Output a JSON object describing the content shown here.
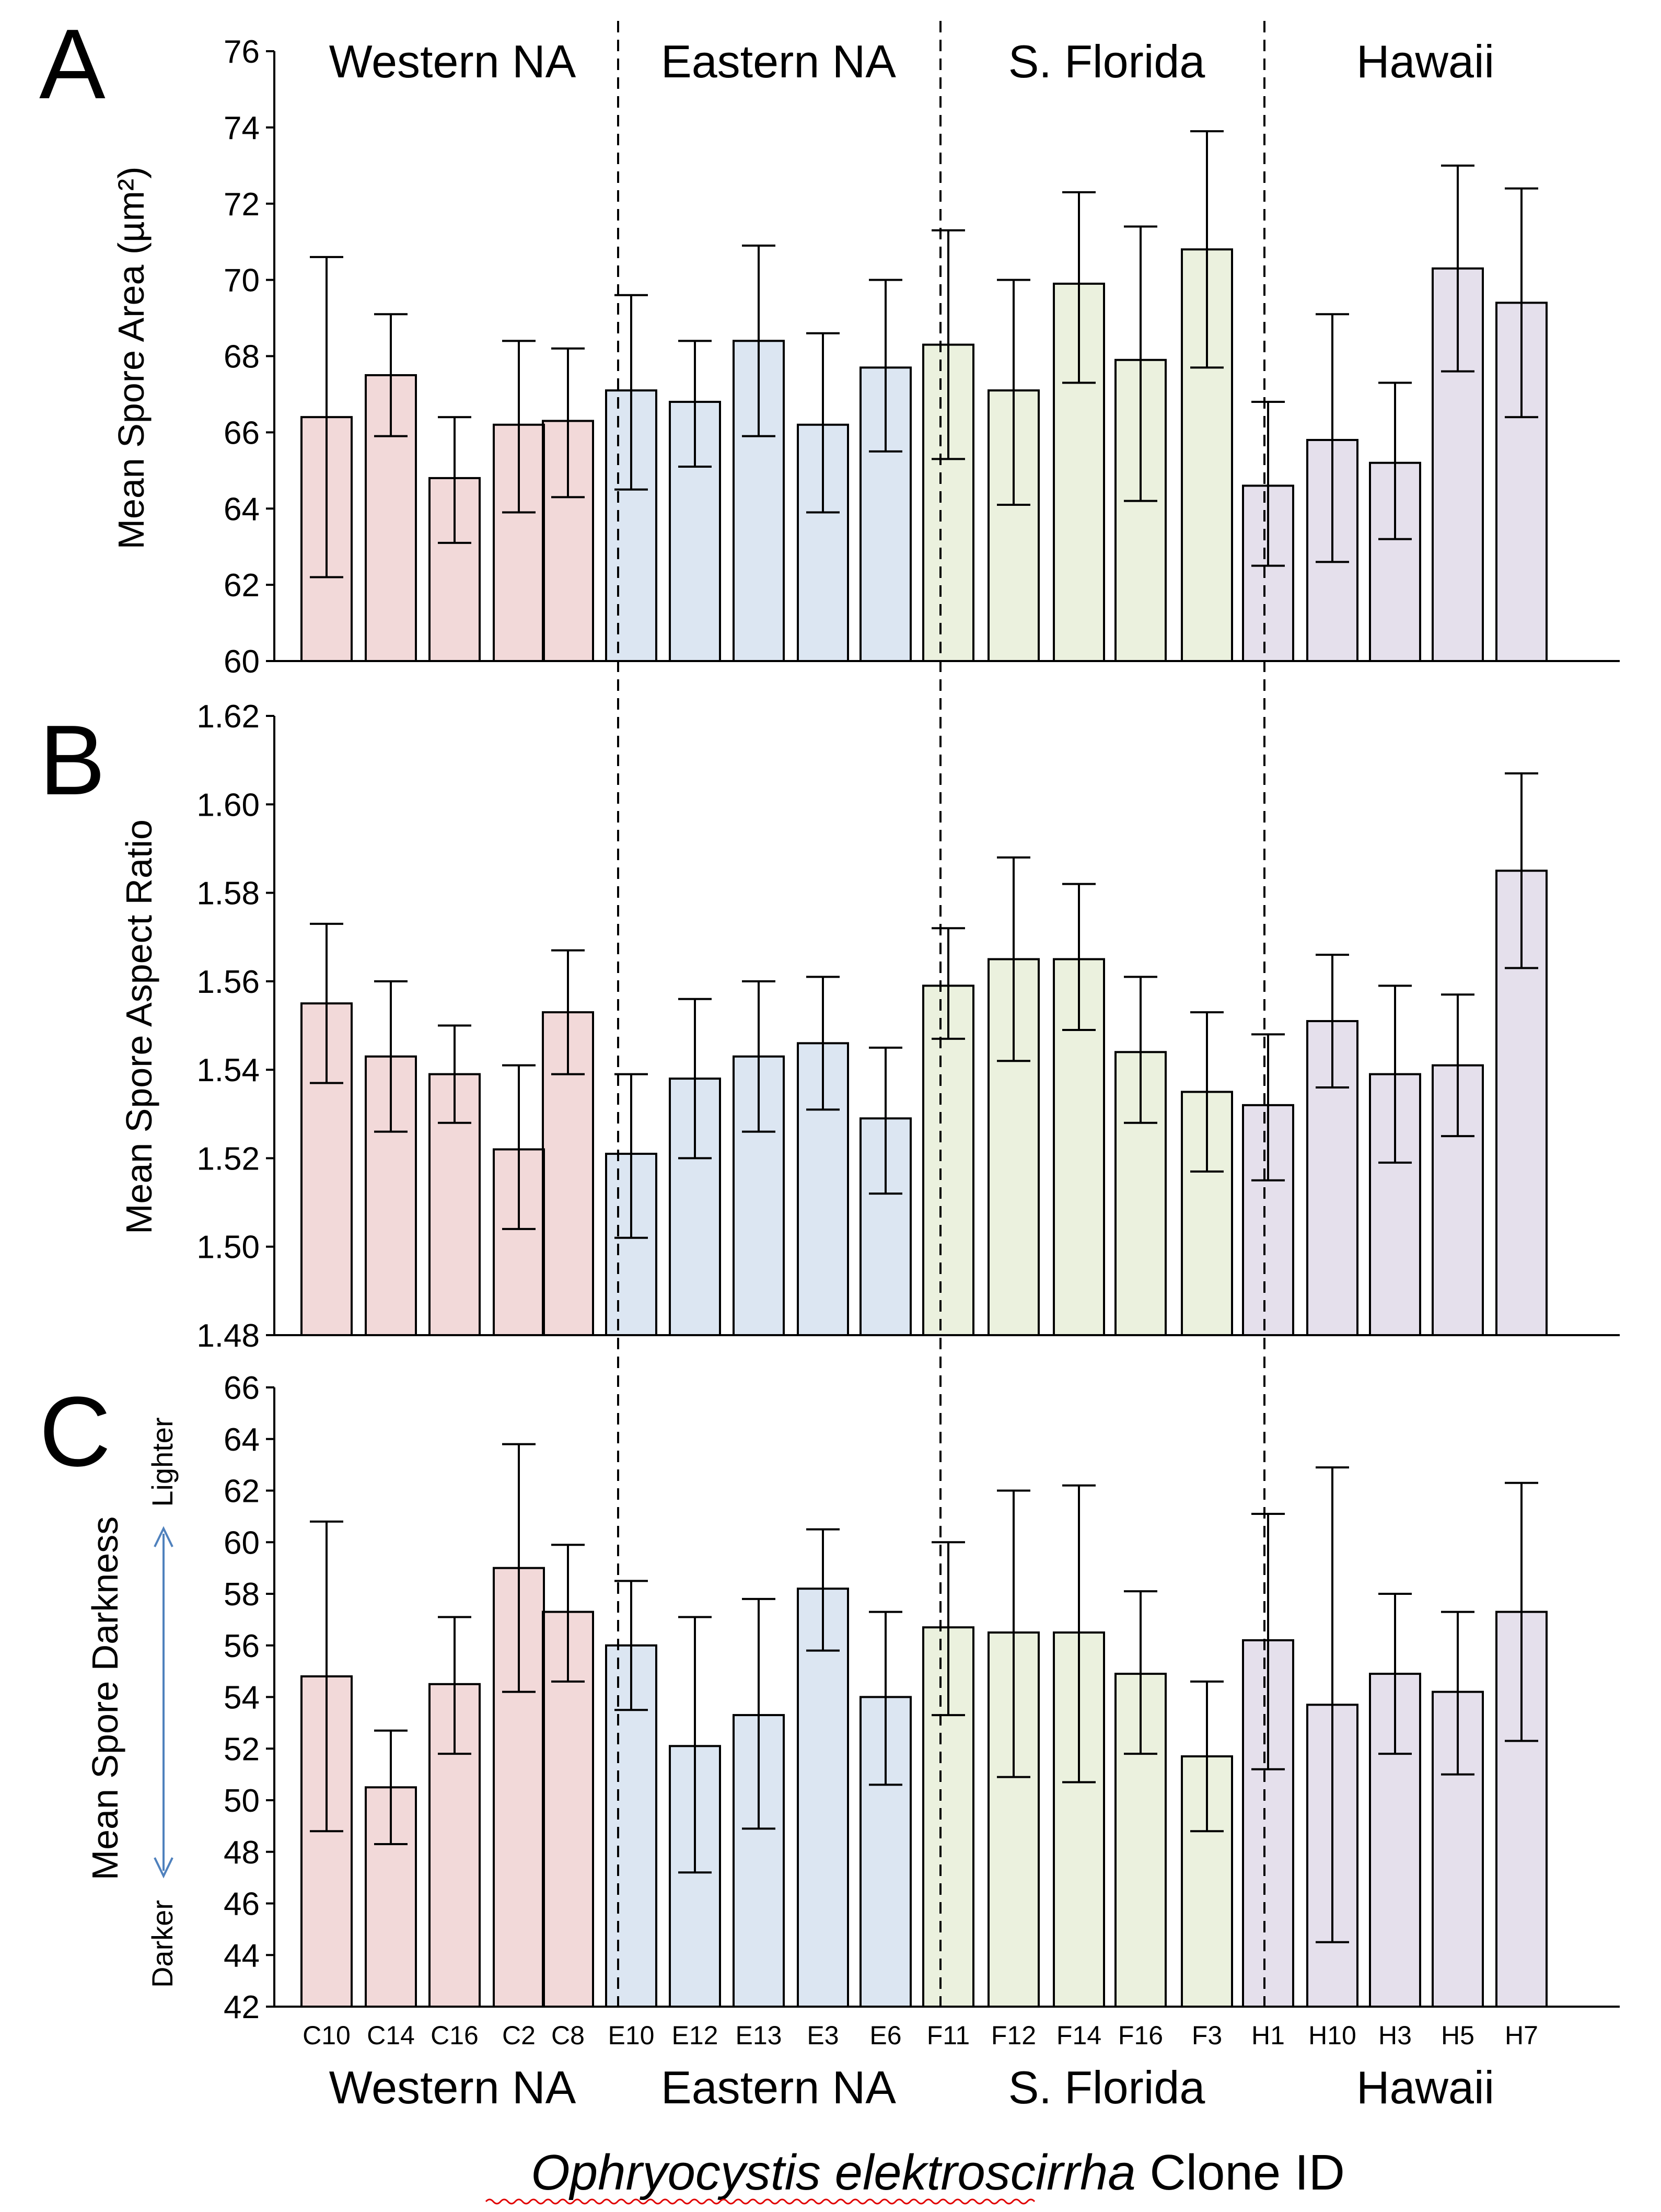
{
  "chart_data": [
    {
      "type": "bar",
      "panel_label": "A",
      "ylabel": "Mean Spore Area (µm²)",
      "ylim": [
        60,
        76
      ],
      "ytick_step": 2,
      "ytick_labels": [
        "60",
        "62",
        "64",
        "66",
        "68",
        "70",
        "72",
        "74",
        "76"
      ],
      "categories": [
        "C10",
        "C14",
        "C16",
        "C2",
        "C8",
        "E10",
        "E12",
        "E13",
        "E3",
        "E6",
        "F11",
        "F12",
        "F14",
        "F16",
        "F3",
        "H1",
        "H10",
        "H3",
        "H5",
        "H7"
      ],
      "values": [
        66.4,
        67.5,
        64.8,
        66.2,
        66.3,
        67.1,
        66.8,
        68.4,
        66.2,
        67.7,
        68.3,
        67.1,
        69.9,
        67.9,
        70.8,
        64.6,
        65.8,
        65.2,
        70.3,
        69.4
      ],
      "err_low": [
        62.2,
        65.9,
        63.1,
        63.9,
        64.3,
        64.5,
        65.1,
        65.9,
        63.9,
        65.5,
        65.3,
        64.1,
        67.3,
        64.2,
        67.7,
        62.5,
        62.6,
        63.2,
        67.6,
        66.4
      ],
      "err_high": [
        70.6,
        69.1,
        66.4,
        68.4,
        68.2,
        69.6,
        68.4,
        70.9,
        68.6,
        70.0,
        71.3,
        70.0,
        72.3,
        71.4,
        73.9,
        66.8,
        69.1,
        67.3,
        73.0,
        72.4
      ]
    },
    {
      "type": "bar",
      "panel_label": "B",
      "ylabel": "Mean Spore Aspect Ratio",
      "ylim": [
        1.48,
        1.62
      ],
      "ytick_step": 0.02,
      "ytick_labels": [
        "1.48",
        "1.50",
        "1.52",
        "1.54",
        "1.56",
        "1.58",
        "1.60",
        "1.62"
      ],
      "categories": [
        "C10",
        "C14",
        "C16",
        "C2",
        "C8",
        "E10",
        "E12",
        "E13",
        "E3",
        "E6",
        "F11",
        "F12",
        "F14",
        "F16",
        "F3",
        "H1",
        "H10",
        "H3",
        "H5",
        "H7"
      ],
      "values": [
        1.555,
        1.543,
        1.539,
        1.522,
        1.553,
        1.521,
        1.538,
        1.543,
        1.546,
        1.529,
        1.559,
        1.565,
        1.565,
        1.544,
        1.535,
        1.532,
        1.551,
        1.539,
        1.541,
        1.585
      ],
      "err_low": [
        1.537,
        1.526,
        1.528,
        1.504,
        1.539,
        1.502,
        1.52,
        1.526,
        1.531,
        1.512,
        1.547,
        1.542,
        1.549,
        1.528,
        1.517,
        1.515,
        1.536,
        1.519,
        1.525,
        1.563
      ],
      "err_high": [
        1.573,
        1.56,
        1.55,
        1.541,
        1.567,
        1.539,
        1.556,
        1.56,
        1.561,
        1.545,
        1.572,
        1.588,
        1.582,
        1.561,
        1.553,
        1.548,
        1.566,
        1.559,
        1.557,
        1.607
      ]
    },
    {
      "type": "bar",
      "panel_label": "C",
      "ylabel": "Mean Spore Darkness",
      "ylim": [
        42,
        66
      ],
      "ytick_step": 2,
      "ytick_labels": [
        "42",
        "44",
        "46",
        "48",
        "50",
        "52",
        "54",
        "56",
        "58",
        "60",
        "62",
        "64",
        "66"
      ],
      "scale_top_label": "Lighter",
      "scale_bottom_label": "Darker",
      "categories": [
        "C10",
        "C14",
        "C16",
        "C2",
        "C8",
        "E10",
        "E12",
        "E13",
        "E3",
        "E6",
        "F11",
        "F12",
        "F14",
        "F16",
        "F3",
        "H1",
        "H10",
        "H3",
        "H5",
        "H7"
      ],
      "values": [
        54.8,
        50.5,
        54.5,
        59.0,
        57.3,
        56.0,
        52.1,
        53.3,
        58.2,
        54.0,
        56.7,
        56.5,
        56.5,
        54.9,
        51.7,
        56.2,
        53.7,
        54.9,
        54.2,
        57.3
      ],
      "err_low": [
        48.8,
        48.3,
        51.8,
        54.2,
        54.6,
        53.5,
        47.2,
        48.9,
        55.8,
        50.6,
        53.3,
        50.9,
        50.7,
        51.8,
        48.8,
        51.2,
        44.5,
        51.8,
        51.0,
        52.3
      ],
      "err_high": [
        60.8,
        52.7,
        57.1,
        63.8,
        59.9,
        58.5,
        57.1,
        57.8,
        60.5,
        57.3,
        60.0,
        62.0,
        62.2,
        58.1,
        54.6,
        61.1,
        62.9,
        58.0,
        57.3,
        62.3
      ]
    }
  ],
  "groups": [
    {
      "name": "Western NA",
      "color": "#f2d9d9"
    },
    {
      "name": "Eastern NA",
      "color": "#dce6f2"
    },
    {
      "name": "S. Florida",
      "color": "#ebf1de"
    },
    {
      "name": "Hawaii",
      "color": "#e5e0ec"
    }
  ],
  "xlabel": {
    "italic": "Ophryocystis elektroscirrha",
    "plain": " Clone ID"
  },
  "arrow_color": "#4f81bd",
  "bar_edge_color": "#000000"
}
